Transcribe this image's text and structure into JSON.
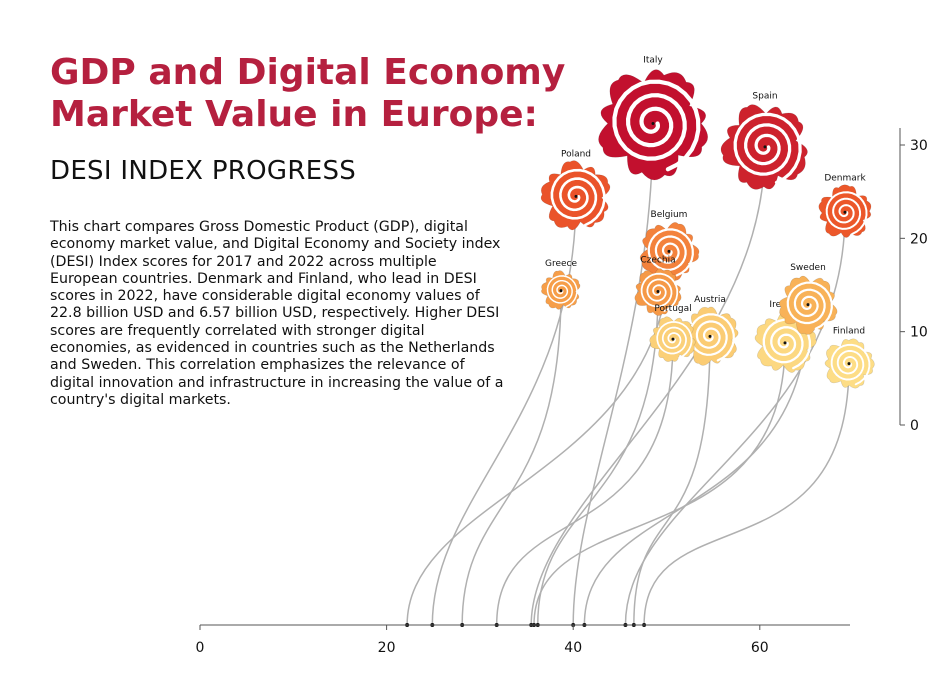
{
  "header": {
    "title_line1": "GDP and Digital Economy",
    "title_line2": "Market Value in Europe:",
    "subtitle": "DESI INDEX PROGRESS",
    "description": "This chart compares Gross Domestic Product (GDP), digital economy market value, and Digital Economy and Society index (DESI) Index scores for 2017 and 2022 across multiple European countries. Denmark and Finland, who lead in DESI scores in 2022, have considerable digital economy values of 22.8 billion USD and 6.57 billion USD, respectively. Higher DESI scores are frequently correlated with stronger digital economies, as evidenced in countries such as the Netherlands and Sweden. This correlation emphasizes the relevance of digital innovation and infrastructure in increasing the value of a country's digital markets."
  },
  "colors": {
    "title": "#b5203f",
    "stem": "#b0b0b0",
    "axis": "#555555",
    "rose_scale": [
      "#fde08a",
      "#f7a94e",
      "#ee5a2a",
      "#c2102e"
    ]
  },
  "chart_data": {
    "type": "scatter",
    "x_axis": {
      "range": [
        0,
        70
      ],
      "ticks": [
        0,
        20,
        40,
        60
      ]
    },
    "y_axis": {
      "range": [
        0,
        32
      ],
      "ticks": [
        0,
        10,
        20,
        30
      ]
    },
    "points": [
      {
        "name": "Italy",
        "x": 40.0,
        "y": 32.3,
        "size": 2.0,
        "shade": 1.0
      },
      {
        "name": "Spain",
        "x": 35.5,
        "y": 29.8,
        "size": 1.55,
        "shade": 0.92
      },
      {
        "name": "Poland",
        "x": 24.9,
        "y": 24.5,
        "size": 1.25,
        "shade": 0.7
      },
      {
        "name": "Denmark",
        "x": 45.6,
        "y": 22.8,
        "size": 0.95,
        "shade": 0.68
      },
      {
        "name": "Belgium",
        "x": 22.2,
        "y": 18.6,
        "size": 1.05,
        "shade": 0.5
      },
      {
        "name": "Greece",
        "x": 28.1,
        "y": 14.4,
        "size": 0.7,
        "shade": 0.38
      },
      {
        "name": "Czechia",
        "x": 36.2,
        "y": 14.3,
        "size": 0.85,
        "shade": 0.4
      },
      {
        "name": "Sweden",
        "x": 41.2,
        "y": 12.9,
        "size": 1.05,
        "shade": 0.28
      },
      {
        "name": "Austria",
        "x": 46.5,
        "y": 9.5,
        "size": 1.05,
        "shade": 0.12
      },
      {
        "name": "Portugal",
        "x": 31.8,
        "y": 9.2,
        "size": 0.82,
        "shade": 0.1
      },
      {
        "name": "Ireland",
        "x": 35.8,
        "y": 8.8,
        "size": 1.1,
        "shade": 0.05
      },
      {
        "name": "Finland",
        "x": 47.6,
        "y": 6.57,
        "size": 0.9,
        "shade": 0.02
      }
    ]
  }
}
